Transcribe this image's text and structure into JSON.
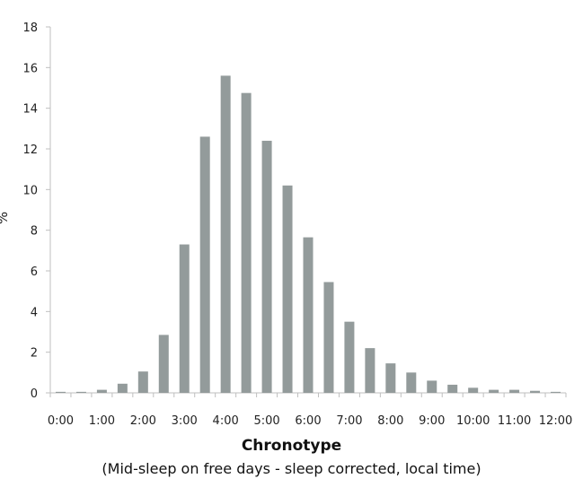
{
  "chart_data": {
    "type": "bar",
    "xlabel": "Chronotype",
    "xlabel_sub": "(Mid-sleep on free days - sleep corrected, local time)",
    "ylabel": "%",
    "ylim": [
      0,
      18
    ],
    "yticks": [
      0,
      2,
      4,
      6,
      8,
      10,
      12,
      14,
      16,
      18
    ],
    "x_tick_labels": [
      "0:00",
      "1:00",
      "2:00",
      "3:00",
      "4:00",
      "5:00",
      "6:00",
      "7:00",
      "8:00",
      "9:00",
      "10:00",
      "11:00",
      "12:00"
    ],
    "bar_color": "#939b9b",
    "grid": false,
    "values": [
      0.05,
      0.05,
      0.15,
      0.45,
      1.05,
      2.85,
      7.3,
      12.6,
      15.6,
      14.75,
      12.4,
      10.2,
      7.65,
      5.45,
      3.5,
      2.2,
      1.45,
      1.0,
      0.6,
      0.4,
      0.25,
      0.15,
      0.15,
      0.1,
      0.05
    ]
  }
}
